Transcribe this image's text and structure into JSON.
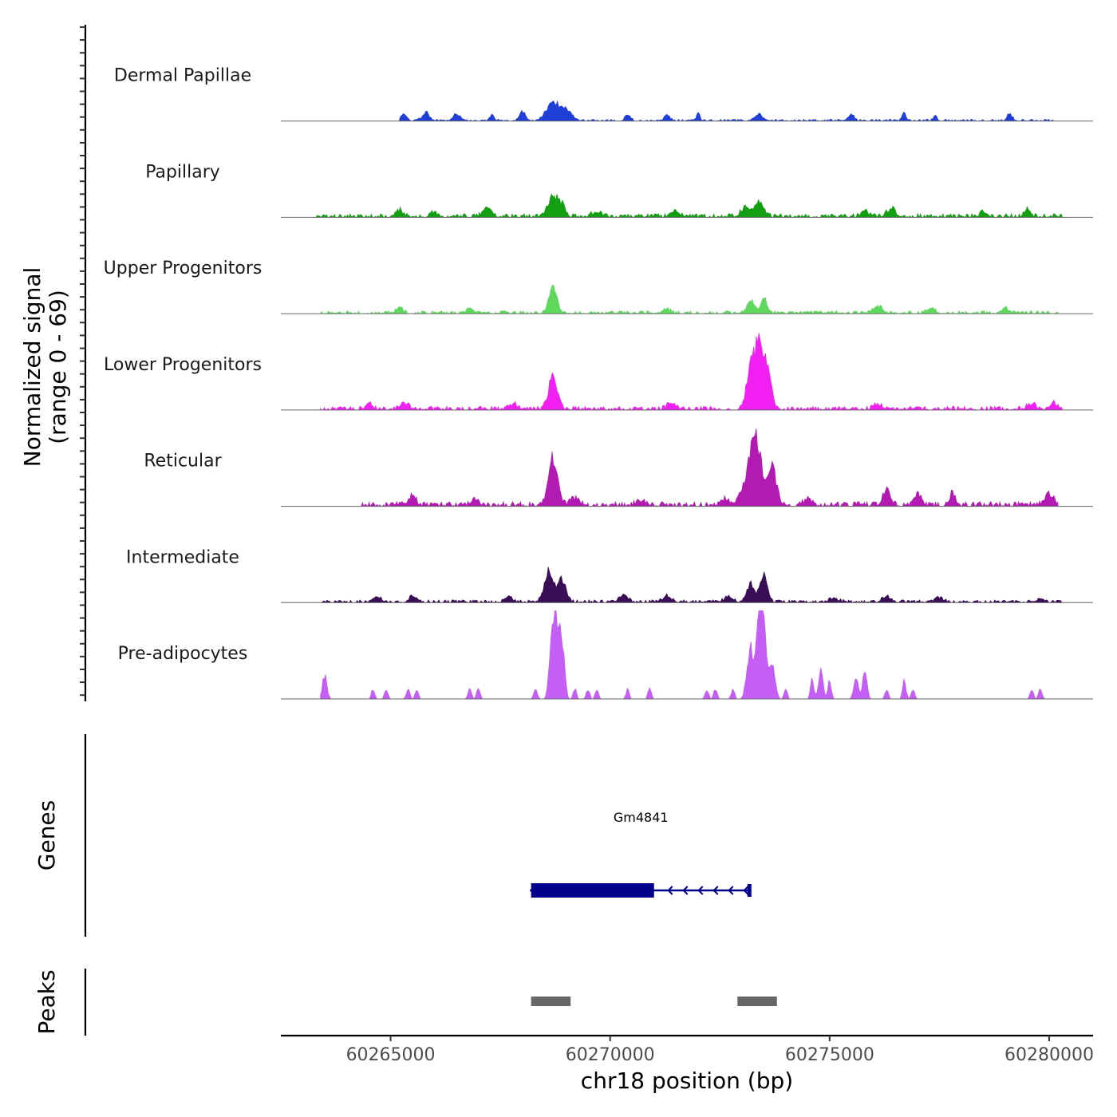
{
  "chart_data": {
    "type": "area",
    "title": "",
    "chromosome": "chr18",
    "xlabel": "chr18 position (bp)",
    "xlim": [
      60262500,
      60281000
    ],
    "xticks": [
      60265000,
      60270000,
      60275000,
      60280000
    ],
    "xtick_labels": [
      "60265000",
      "60270000",
      "60275000",
      "60280000"
    ],
    "ylabel_line1": "Normalized signal",
    "ylabel_line2": "(range 0 - 69)",
    "ylim": [
      0,
      69
    ],
    "coverage_tracks": [
      {
        "name": "Dermal Papillae",
        "color": "#1f3fd6",
        "data_start": 60265200,
        "data_end": 60280100,
        "baseline": 1,
        "peaks": [
          [
            60265300,
            5,
            60
          ],
          [
            60265800,
            6,
            80
          ],
          [
            60266500,
            5,
            80
          ],
          [
            60267300,
            5,
            40
          ],
          [
            60268000,
            8,
            60
          ],
          [
            60268700,
            14,
            150
          ],
          [
            60269000,
            8,
            120
          ],
          [
            60270400,
            5,
            60
          ],
          [
            60271300,
            5,
            60
          ],
          [
            60272000,
            6,
            40
          ],
          [
            60273400,
            5,
            80
          ],
          [
            60275500,
            5,
            60
          ],
          [
            60276700,
            7,
            40
          ],
          [
            60277400,
            4,
            40
          ],
          [
            60279100,
            5,
            60
          ]
        ]
      },
      {
        "name": "Papillary",
        "color": "#12a012",
        "data_start": 60263300,
        "data_end": 60280300,
        "baseline": 2,
        "peaks": [
          [
            60265200,
            5,
            80
          ],
          [
            60266000,
            3,
            80
          ],
          [
            60267200,
            6,
            100
          ],
          [
            60268700,
            16,
            110
          ],
          [
            60268900,
            8,
            80
          ],
          [
            60269700,
            4,
            100
          ],
          [
            60271500,
            4,
            100
          ],
          [
            60273100,
            8,
            100
          ],
          [
            60273400,
            12,
            90
          ],
          [
            60275800,
            5,
            80
          ],
          [
            60276400,
            6,
            100
          ],
          [
            60278500,
            3,
            80
          ],
          [
            60279500,
            5,
            60
          ]
        ]
      },
      {
        "name": "Upper Progenitors",
        "color": "#5ed95e",
        "data_start": 60263400,
        "data_end": 60280200,
        "baseline": 1.5,
        "peaks": [
          [
            60265200,
            5,
            80
          ],
          [
            60266800,
            3,
            80
          ],
          [
            60268700,
            21,
            90
          ],
          [
            60271300,
            3,
            80
          ],
          [
            60273200,
            9,
            90
          ],
          [
            60273500,
            12,
            70
          ],
          [
            60276100,
            5,
            100
          ],
          [
            60277300,
            4,
            100
          ],
          [
            60279000,
            4,
            80
          ]
        ]
      },
      {
        "name": "Lower Progenitors",
        "color": "#f21ff2",
        "data_start": 60263400,
        "data_end": 60280300,
        "baseline": 2,
        "peaks": [
          [
            60264500,
            4,
            80
          ],
          [
            60265300,
            5,
            100
          ],
          [
            60267800,
            4,
            100
          ],
          [
            60268700,
            28,
            100
          ],
          [
            60271400,
            5,
            100
          ],
          [
            60273200,
            32,
            90
          ],
          [
            60273400,
            49,
            100
          ],
          [
            60273600,
            26,
            90
          ],
          [
            60276100,
            4,
            100
          ],
          [
            60279600,
            4,
            100
          ],
          [
            60280100,
            5,
            80
          ]
        ]
      },
      {
        "name": "Reticular",
        "color": "#b21ab2",
        "data_start": 60264300,
        "data_end": 60280200,
        "baseline": 2.5,
        "peaks": [
          [
            60265500,
            8,
            80
          ],
          [
            60266900,
            5,
            80
          ],
          [
            60268700,
            36,
            100
          ],
          [
            60269200,
            6,
            90
          ],
          [
            60270700,
            4,
            100
          ],
          [
            60272600,
            5,
            100
          ],
          [
            60273000,
            8,
            100
          ],
          [
            60273300,
            55,
            140
          ],
          [
            60273700,
            30,
            90
          ],
          [
            60274500,
            6,
            80
          ],
          [
            60276300,
            14,
            80
          ],
          [
            60277000,
            8,
            80
          ],
          [
            60277800,
            11,
            60
          ],
          [
            60280000,
            9,
            100
          ]
        ]
      },
      {
        "name": "Intermediate",
        "color": "#3a0d57",
        "data_start": 60263400,
        "data_end": 60280300,
        "baseline": 1.5,
        "peaks": [
          [
            60264700,
            5,
            80
          ],
          [
            60265500,
            4,
            80
          ],
          [
            60267700,
            5,
            80
          ],
          [
            60268600,
            24,
            100
          ],
          [
            60268900,
            18,
            90
          ],
          [
            60270300,
            5,
            100
          ],
          [
            60271300,
            5,
            100
          ],
          [
            60272700,
            4,
            100
          ],
          [
            60273200,
            14,
            90
          ],
          [
            60273500,
            22,
            80
          ],
          [
            60275100,
            3,
            100
          ],
          [
            60276300,
            4,
            100
          ],
          [
            60277500,
            4,
            80
          ],
          [
            60279800,
            3,
            80
          ]
        ]
      },
      {
        "name": "Pre-adipocytes",
        "color": "#c45ef5",
        "data_start": 60263400,
        "data_end": 60280000,
        "baseline": 0,
        "peaks": [
          [
            60263500,
            20,
            50
          ],
          [
            60264600,
            8,
            40
          ],
          [
            60264900,
            8,
            40
          ],
          [
            60265400,
            8,
            40
          ],
          [
            60265600,
            8,
            40
          ],
          [
            60266800,
            8,
            40
          ],
          [
            60267000,
            8,
            40
          ],
          [
            60268300,
            8,
            40
          ],
          [
            60268650,
            45,
            50
          ],
          [
            60268750,
            69,
            40
          ],
          [
            60268850,
            55,
            50
          ],
          [
            60268950,
            30,
            40
          ],
          [
            60269200,
            8,
            40
          ],
          [
            60269500,
            8,
            40
          ],
          [
            60269700,
            8,
            40
          ],
          [
            60270400,
            8,
            40
          ],
          [
            60270900,
            8,
            40
          ],
          [
            60272200,
            8,
            40
          ],
          [
            60272400,
            8,
            40
          ],
          [
            60272800,
            8,
            40
          ],
          [
            60273200,
            40,
            80
          ],
          [
            60273400,
            69,
            60
          ],
          [
            60273500,
            55,
            70
          ],
          [
            60273700,
            28,
            60
          ],
          [
            60274000,
            8,
            40
          ],
          [
            60274600,
            15,
            40
          ],
          [
            60274800,
            22,
            50
          ],
          [
            60275000,
            15,
            40
          ],
          [
            60275600,
            18,
            50
          ],
          [
            60275800,
            22,
            50
          ],
          [
            60276300,
            8,
            40
          ],
          [
            60276700,
            15,
            40
          ],
          [
            60276900,
            8,
            40
          ],
          [
            60279600,
            8,
            40
          ],
          [
            60279800,
            8,
            40
          ]
        ]
      }
    ],
    "genes_track": {
      "label": "Genes",
      "genes": [
        {
          "name": "Gm4841",
          "strand": "-",
          "start": 60268200,
          "end": 60273200,
          "thick_start": 60268200,
          "thick_end": 60271000,
          "color": "#00008b"
        }
      ]
    },
    "peaks_track": {
      "label": "Peaks",
      "color": "#666666",
      "regions": [
        [
          60268200,
          60269100
        ],
        [
          60272900,
          60273800
        ]
      ]
    }
  }
}
